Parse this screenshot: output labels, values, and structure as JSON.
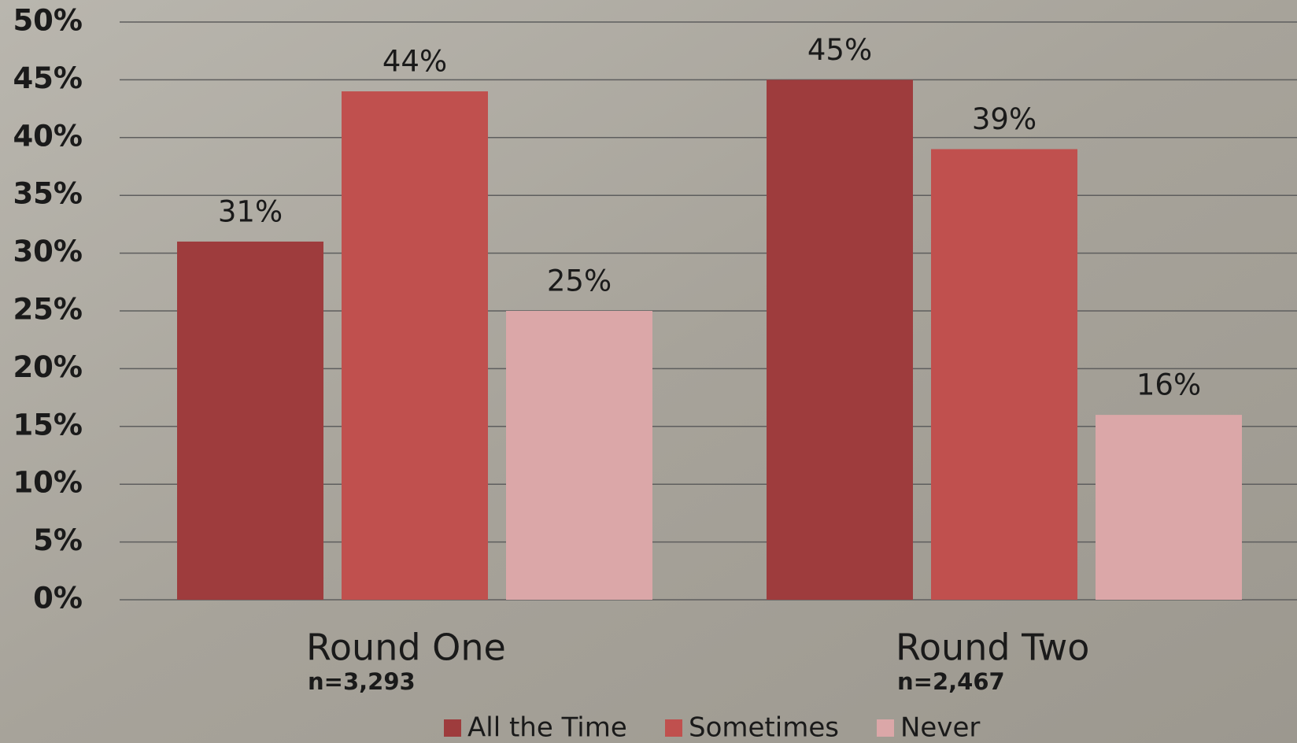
{
  "chart_data": {
    "type": "bar",
    "categories": [
      "Round One",
      "Round Two"
    ],
    "category_subtitles": [
      "n=3,293",
      "n=2,467"
    ],
    "series": [
      {
        "name": "All the Time",
        "color": "#9e3c3d",
        "values": [
          31,
          45
        ],
        "value_labels": [
          "31%",
          "45%"
        ]
      },
      {
        "name": "Sometimes",
        "color": "#c0504e",
        "values": [
          44,
          39
        ],
        "value_labels": [
          "44%",
          "39%"
        ]
      },
      {
        "name": "Never",
        "color": "#dba7a8",
        "values": [
          25,
          16
        ],
        "value_labels": [
          "25%",
          "16%"
        ]
      }
    ],
    "ylim": [
      0,
      50
    ],
    "yticks": [
      {
        "value": 0,
        "label": "0%"
      },
      {
        "value": 5,
        "label": "5%"
      },
      {
        "value": 10,
        "label": "10%"
      },
      {
        "value": 15,
        "label": "15%"
      },
      {
        "value": 20,
        "label": "20%"
      },
      {
        "value": 25,
        "label": "25%"
      },
      {
        "value": 30,
        "label": "30%"
      },
      {
        "value": 35,
        "label": "35%"
      },
      {
        "value": 40,
        "label": "40%"
      },
      {
        "value": 45,
        "label": "45%"
      },
      {
        "value": 50,
        "label": "50%"
      }
    ],
    "grid": true,
    "legend": "bottom"
  }
}
